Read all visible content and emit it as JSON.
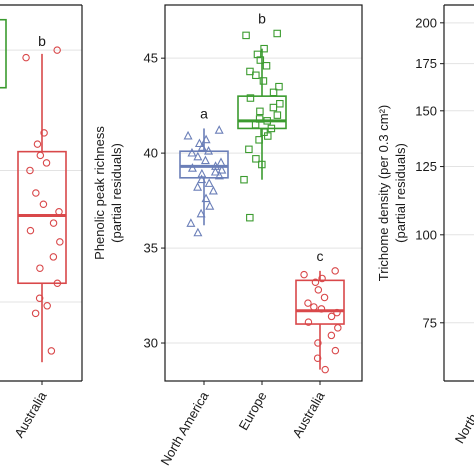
{
  "colors": {
    "North America": "#6b7fb8",
    "Europe": "#3b9b2f",
    "Australia": "#d9484a",
    "grid": "#e3e3e3",
    "frame": "#1a1a1a"
  },
  "chart_data": [
    {
      "type": "box",
      "panel": "left",
      "categories": [
        "Australia"
      ],
      "visible_category_labels": [
        "Australia"
      ],
      "series": [
        {
          "category": "Australia",
          "letter": "b",
          "box": {
            "whisker_low": 0.05,
            "q1": 0.26,
            "median": 0.44,
            "q3": 0.61,
            "whisker_high": 0.87
          },
          "points": [
            0.88,
            0.86,
            0.66,
            0.63,
            0.6,
            0.58,
            0.56,
            0.5,
            0.47,
            0.45,
            0.42,
            0.4,
            0.37,
            0.33,
            0.3,
            0.26,
            0.22,
            0.2,
            0.18,
            0.08
          ]
        }
      ],
      "partial_box_visible": {
        "category": "Europe",
        "q1": 0.78,
        "q3": 1.0
      }
    },
    {
      "type": "box",
      "panel": "middle",
      "ylabel": "Phenolic peak richness\n(partial residuals)",
      "yticks": [
        30,
        35,
        40,
        45
      ],
      "ylim": [
        28.0,
        47.8
      ],
      "categories": [
        "North America",
        "Europe",
        "Australia"
      ],
      "series": [
        {
          "category": "North America",
          "letter": "a",
          "marker": "triangle",
          "box": {
            "whisker_low": 36.2,
            "q1": 38.7,
            "median": 39.3,
            "q3": 40.1,
            "whisker_high": 41.3
          },
          "points": [
            41.2,
            40.9,
            40.7,
            40.5,
            40.3,
            40.1,
            40.0,
            39.8,
            39.6,
            39.5,
            39.3,
            39.2,
            39.1,
            39.0,
            38.9,
            38.8,
            38.6,
            38.4,
            38.2,
            38.0,
            37.6,
            37.2,
            36.8,
            36.3,
            35.8
          ]
        },
        {
          "category": "Europe",
          "letter": "b",
          "marker": "square",
          "box": {
            "whisker_low": 38.6,
            "q1": 41.3,
            "median": 41.7,
            "q3": 43.0,
            "whisker_high": 45.5
          },
          "points": [
            46.3,
            46.2,
            45.5,
            45.2,
            44.9,
            44.6,
            44.3,
            44.1,
            43.8,
            43.5,
            43.2,
            42.9,
            42.6,
            42.4,
            42.2,
            42.0,
            41.8,
            41.7,
            41.5,
            41.3,
            41.1,
            40.9,
            40.7,
            40.2,
            39.7,
            39.4,
            38.6,
            36.6
          ]
        },
        {
          "category": "Australia",
          "letter": "c",
          "marker": "circle",
          "box": {
            "whisker_low": 28.6,
            "q1": 31.0,
            "median": 31.7,
            "q3": 33.3,
            "whisker_high": 33.8
          },
          "points": [
            33.8,
            33.6,
            33.4,
            33.2,
            32.8,
            32.4,
            32.1,
            31.9,
            31.8,
            31.6,
            31.4,
            31.1,
            30.8,
            30.4,
            30.0,
            29.6,
            29.2,
            28.6
          ]
        }
      ]
    },
    {
      "type": "box",
      "panel": "right",
      "ylabel": "Trichome density (per 0.3 cm²)\n(partial residuals)",
      "yticks": [
        75,
        100,
        125,
        150,
        175,
        200
      ],
      "scale": "log",
      "ylim": [
        62,
        212
      ],
      "visible_category_labels": [
        "North"
      ]
    }
  ]
}
